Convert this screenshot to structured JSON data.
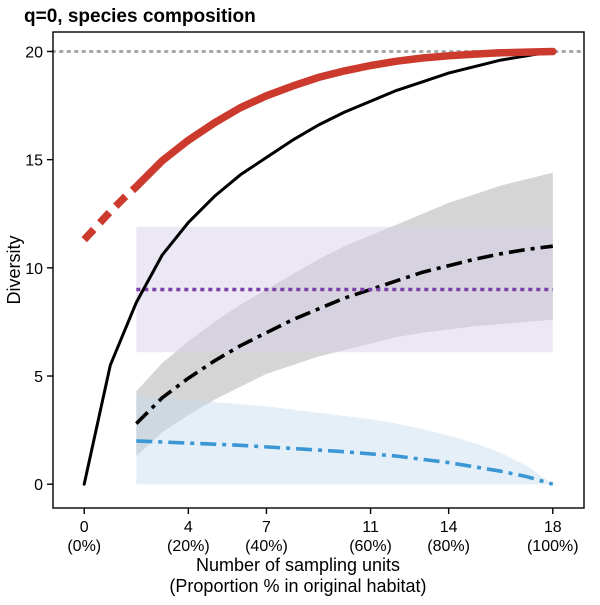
{
  "chart_data": {
    "type": "line",
    "title": "q=0, species composition",
    "xlabel_line1": "Number of sampling units",
    "xlabel_line2": "(Proportion % in original habitat)",
    "ylabel": "Diversity",
    "xlim": [
      -1.2,
      19.2
    ],
    "ylim": [
      -1.1,
      20.9
    ],
    "grid": false,
    "legend": "none",
    "x_ticks": [
      {
        "value": 0,
        "label": "0",
        "sublabel": "(0%)"
      },
      {
        "value": 4,
        "label": "4",
        "sublabel": "(20%)"
      },
      {
        "value": 7,
        "label": "7",
        "sublabel": "(40%)"
      },
      {
        "value": 11,
        "label": "11",
        "sublabel": "(60%)"
      },
      {
        "value": 14,
        "label": "14",
        "sublabel": "(80%)"
      },
      {
        "value": 18,
        "label": "18",
        "sublabel": "(100%)"
      }
    ],
    "y_ticks": [
      {
        "value": 0,
        "label": "0"
      },
      {
        "value": 5,
        "label": "5"
      },
      {
        "value": 10,
        "label": "10"
      },
      {
        "value": 15,
        "label": "15"
      },
      {
        "value": 20,
        "label": "20"
      }
    ],
    "reference_line": {
      "y": 20,
      "color": "#a6a6a6",
      "style": "dotted"
    },
    "bands": [
      {
        "color": "#b3b3b3",
        "opacity": 0.55,
        "x": [
          2,
          3,
          4,
          5,
          6,
          7,
          8,
          9,
          10,
          11,
          12,
          13,
          14,
          15,
          16,
          17,
          18
        ],
        "lower": [
          1.3,
          2.4,
          3.2,
          3.9,
          4.5,
          5.1,
          5.5,
          5.9,
          6.2,
          6.5,
          6.8,
          7.0,
          7.15,
          7.3,
          7.4,
          7.5,
          7.6
        ],
        "upper": [
          4.3,
          5.6,
          6.6,
          7.5,
          8.3,
          9.0,
          9.7,
          10.4,
          11.0,
          11.5,
          12.0,
          12.5,
          13.0,
          13.4,
          13.8,
          14.1,
          14.4
        ]
      },
      {
        "color": "#d9d0ea",
        "opacity": 0.5,
        "x": [
          2,
          18
        ],
        "lower": [
          6.1,
          6.1
        ],
        "upper": [
          11.9,
          11.9
        ]
      },
      {
        "color": "#c6dcf0",
        "opacity": 0.45,
        "x": [
          2,
          3,
          4,
          5,
          6,
          7,
          8,
          9,
          10,
          11,
          12,
          13,
          14,
          15,
          16,
          17,
          18
        ],
        "lower": [
          0,
          0,
          0,
          0,
          0,
          0,
          0,
          0,
          0,
          0,
          0,
          0,
          0,
          0,
          0,
          0,
          0
        ],
        "upper": [
          4.1,
          4.0,
          3.9,
          3.8,
          3.7,
          3.6,
          3.45,
          3.3,
          3.15,
          3.0,
          2.8,
          2.55,
          2.25,
          1.9,
          1.45,
          0.85,
          0
        ]
      }
    ],
    "series": [
      {
        "color": "#000000",
        "dash": "dashdot",
        "width": 3.6,
        "x": [
          2,
          3,
          4,
          5,
          6,
          7,
          8,
          9,
          10,
          11,
          12,
          13,
          14,
          15,
          16,
          17,
          18
        ],
        "y": [
          2.8,
          4.0,
          4.9,
          5.7,
          6.4,
          7.0,
          7.6,
          8.1,
          8.6,
          9.0,
          9.4,
          9.8,
          10.1,
          10.4,
          10.65,
          10.85,
          11.0
        ]
      },
      {
        "color": "#7b3fa8",
        "dash": "dotted",
        "width": 3.6,
        "x": [
          2,
          18
        ],
        "y": [
          9.0,
          9.0
        ]
      },
      {
        "color": "#3b97d3",
        "dash": "dashdot",
        "width": 3.6,
        "x": [
          2,
          4,
          6,
          8,
          10,
          12,
          14,
          16,
          17,
          18
        ],
        "y": [
          2.0,
          1.9,
          1.8,
          1.65,
          1.5,
          1.3,
          1.0,
          0.6,
          0.35,
          0
        ]
      },
      {
        "color": "#000000",
        "dash": "solid",
        "width": 3,
        "x": [
          0,
          1,
          2,
          3,
          4,
          5,
          6,
          7,
          8,
          9,
          10,
          11,
          12,
          13,
          14,
          15,
          16,
          17,
          18
        ],
        "y": [
          0,
          5.5,
          8.4,
          10.6,
          12.1,
          13.3,
          14.3,
          15.1,
          15.9,
          16.6,
          17.2,
          17.7,
          18.2,
          18.6,
          19.0,
          19.3,
          19.6,
          19.8,
          20.0
        ]
      },
      {
        "color": "#cc3a2e",
        "dash": "dashed",
        "width": 7.5,
        "x": [
          0,
          0.5,
          1,
          1.5,
          2
        ],
        "y": [
          11.3,
          11.95,
          12.6,
          13.2,
          13.75
        ]
      },
      {
        "color": "#cc3a2e",
        "dash": "solid",
        "width": 7.5,
        "x": [
          2,
          3,
          4,
          5,
          6,
          7,
          8,
          9,
          10,
          11,
          12,
          13,
          14,
          15,
          16,
          17,
          18
        ],
        "y": [
          13.75,
          14.95,
          15.9,
          16.7,
          17.4,
          17.95,
          18.4,
          18.8,
          19.1,
          19.35,
          19.55,
          19.7,
          19.8,
          19.88,
          19.94,
          19.97,
          20.0
        ]
      }
    ]
  }
}
